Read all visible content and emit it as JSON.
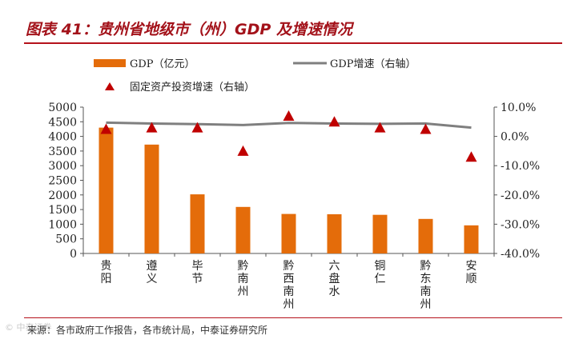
{
  "header": {
    "title": "图表 41：贵州省地级市（州）GDP 及增速情况"
  },
  "footer": {
    "source": "来源：各市政府工作报告，各市统计局，中泰证券研究所",
    "watermark": "© 中泰证券"
  },
  "colors": {
    "bar": "#e46c0a",
    "line": "#7f7f7f",
    "marker": "#c00000",
    "accent": "#b5121b"
  },
  "chart_data": {
    "type": "bar",
    "categories": [
      "贵阳",
      "遵义",
      "毕节",
      "黔南州",
      "黔西南州",
      "六盘水",
      "铜仁",
      "黔东南州",
      "安顺"
    ],
    "series": [
      {
        "name": "GDP（亿元）",
        "type": "bar",
        "axis": "left",
        "values": [
          4300,
          3720,
          2020,
          1590,
          1350,
          1340,
          1320,
          1180,
          960
        ]
      },
      {
        "name": "GDP增速（右轴）",
        "type": "line",
        "axis": "right",
        "values": [
          4.7,
          4.4,
          4.2,
          3.9,
          4.6,
          4.4,
          4.3,
          4.4,
          3.0
        ]
      },
      {
        "name": "固定资产投资增速（右轴）",
        "type": "scatter",
        "axis": "right",
        "values": [
          2.5,
          3.0,
          3.0,
          -5.0,
          7.0,
          5.0,
          3.0,
          2.5,
          -7.0
        ]
      }
    ],
    "y_left": {
      "ylim": [
        0,
        5000
      ],
      "ticks": [
        "0",
        "500",
        "1000",
        "1500",
        "2000",
        "2500",
        "3000",
        "3500",
        "4000",
        "4500",
        "5000"
      ]
    },
    "y_right": {
      "ylim": [
        -40,
        10
      ],
      "ticks": [
        "-40.0%",
        "-30.0%",
        "-20.0%",
        "-10.0%",
        "0.0%",
        "10.0%"
      ]
    },
    "legend": [
      "GDP（亿元）",
      "GDP增速（右轴）",
      "固定资产投资增速（右轴）"
    ],
    "title": "贵州省地级市（州）GDP 及增速情况"
  }
}
